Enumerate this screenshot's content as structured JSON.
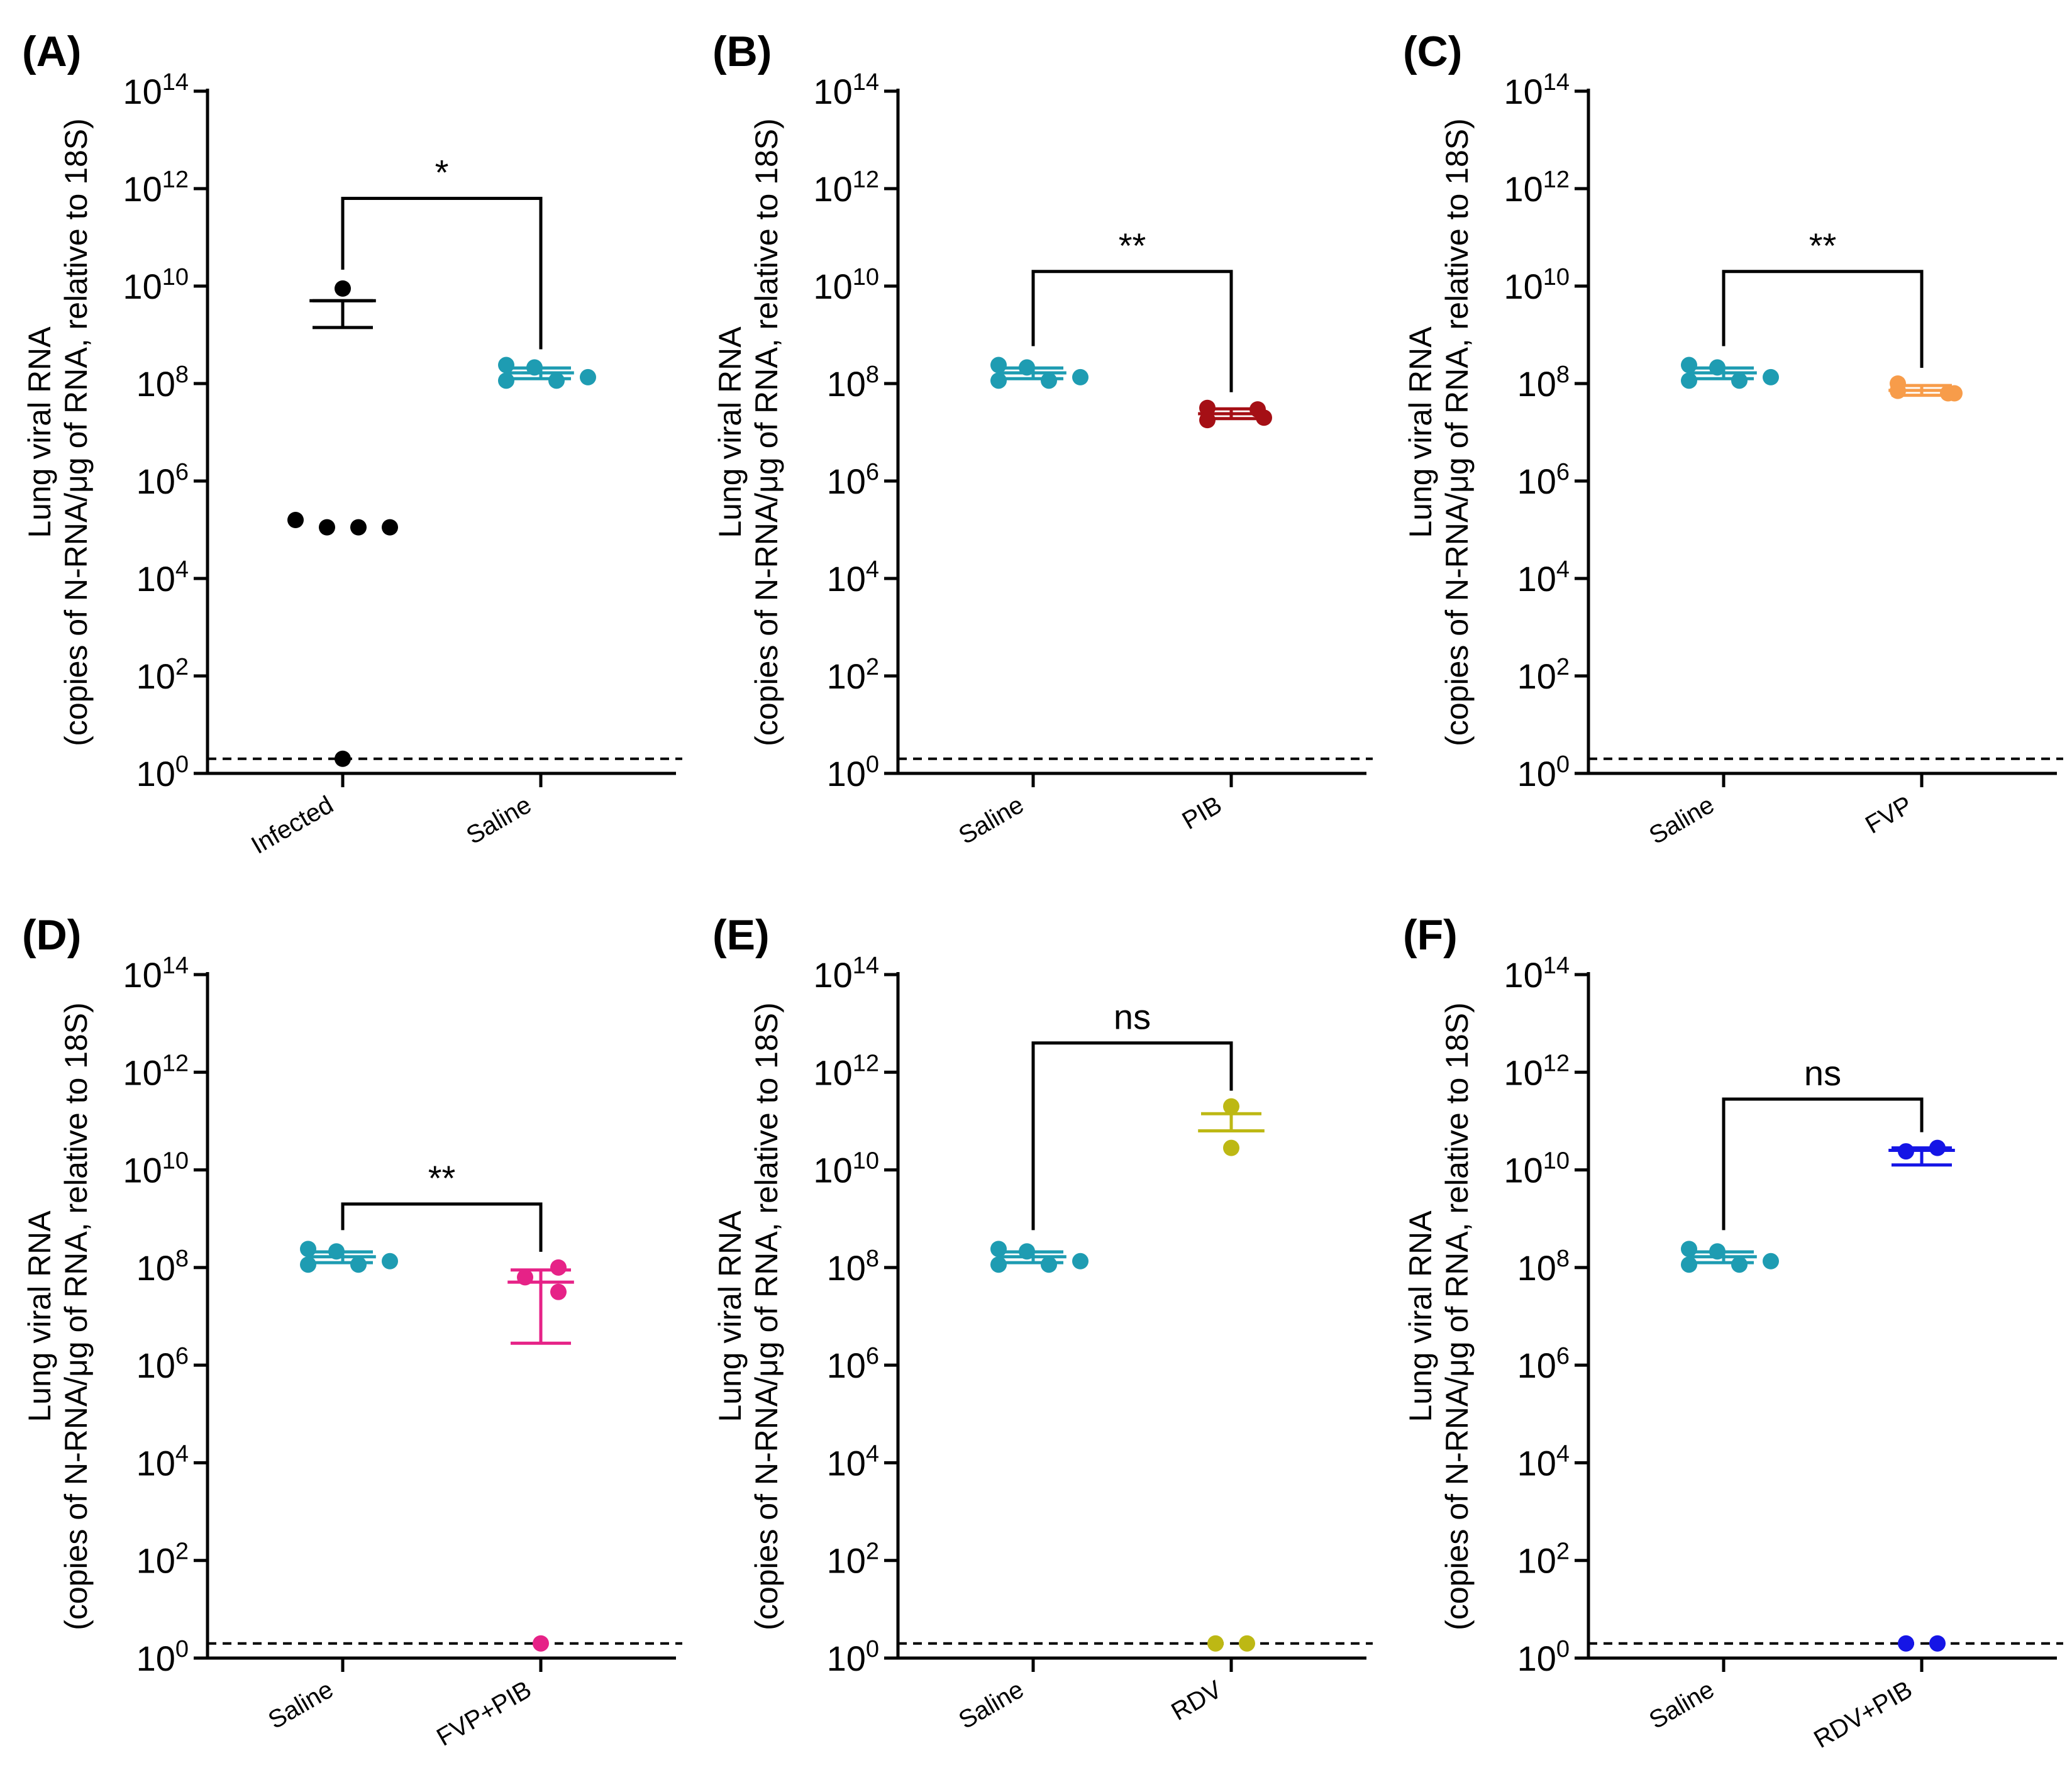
{
  "figure": {
    "ylabel_line1": "Lung viral RNA",
    "ylabel_line2": "(copies of N-RNA/μg of RNA, relative to 18S)",
    "yaxis_scale": "log10",
    "ylim_log10": [
      0,
      14
    ],
    "tick_exponents": [
      "0",
      "2",
      "4",
      "6",
      "8",
      "10",
      "12",
      "14"
    ],
    "tick_base": "10",
    "detection_limit_log10": 0.3
  },
  "chart_data": [
    {
      "type": "scatter",
      "label": "(A)",
      "categories": [
        "Infected",
        "Saline"
      ],
      "series": [
        {
          "name": "Infected",
          "color": "#000000",
          "points_log10": [
            9.95,
            5.2,
            5.05,
            5.05,
            5.05,
            0.3
          ],
          "mean_log10": 9.7,
          "err_low_log10": 9.15,
          "err_high_log10": 9.7
        },
        {
          "name": "Saline",
          "color": "#1E9CB2",
          "points_log10": [
            8.38,
            8.06,
            8.33,
            8.06,
            8.13
          ],
          "mean_log10": 8.22,
          "err_low_log10": 8.1,
          "err_high_log10": 8.32
        }
      ],
      "comparison": {
        "from": 0,
        "to": 1,
        "label": "*",
        "level_log10": 11.8
      }
    },
    {
      "type": "scatter",
      "label": "(B)",
      "categories": [
        "Saline",
        "PIB"
      ],
      "series": [
        {
          "name": "Saline",
          "color": "#1E9CB2",
          "points_log10": [
            8.38,
            8.06,
            8.33,
            8.06,
            8.13
          ],
          "mean_log10": 8.22,
          "err_low_log10": 8.1,
          "err_high_log10": 8.32
        },
        {
          "name": "PIB",
          "color": "#A50F15",
          "points_log10": [
            7.5,
            7.47,
            7.25,
            7.3
          ],
          "mean_log10": 7.38,
          "err_low_log10": 7.28,
          "err_high_log10": 7.48
        }
      ],
      "comparison": {
        "from": 0,
        "to": 1,
        "label": "**",
        "level_log10": 10.3
      }
    },
    {
      "type": "scatter",
      "label": "(C)",
      "categories": [
        "Saline",
        "FVP"
      ],
      "series": [
        {
          "name": "Saline",
          "color": "#1E9CB2",
          "points_log10": [
            8.38,
            8.06,
            8.33,
            8.06,
            8.13
          ],
          "mean_log10": 8.22,
          "err_low_log10": 8.1,
          "err_high_log10": 8.32
        },
        {
          "name": "FVP",
          "color": "#F79C4A",
          "points_log10": [
            8.0,
            7.8,
            7.85,
            7.8
          ],
          "mean_log10": 7.86,
          "err_low_log10": 7.76,
          "err_high_log10": 7.96
        }
      ],
      "comparison": {
        "from": 0,
        "to": 1,
        "label": "**",
        "level_log10": 10.3
      }
    },
    {
      "type": "scatter",
      "label": "(D)",
      "categories": [
        "Saline",
        "FVP+PIB"
      ],
      "series": [
        {
          "name": "Saline",
          "color": "#1E9CB2",
          "points_log10": [
            8.38,
            8.06,
            8.33,
            8.06,
            8.13
          ],
          "mean_log10": 8.22,
          "err_low_log10": 8.1,
          "err_high_log10": 8.32
        },
        {
          "name": "FVP+PIB",
          "color": "#E62287",
          "points_log10": [
            7.8,
            8.0,
            7.5,
            0.3
          ],
          "mean_log10": 7.7,
          "err_low_log10": 6.45,
          "err_high_log10": 7.95
        }
      ],
      "comparison": {
        "from": 0,
        "to": 1,
        "label": "**",
        "level_log10": 9.3
      }
    },
    {
      "type": "scatter",
      "label": "(E)",
      "categories": [
        "Saline",
        "RDV"
      ],
      "series": [
        {
          "name": "Saline",
          "color": "#1E9CB2",
          "points_log10": [
            8.38,
            8.06,
            8.33,
            8.06,
            8.13
          ],
          "mean_log10": 8.22,
          "err_low_log10": 8.1,
          "err_high_log10": 8.32
        },
        {
          "name": "RDV",
          "color": "#BDB814",
          "points_log10": [
            11.3,
            10.45,
            0.3,
            0.3
          ],
          "mean_log10": 10.8,
          "err_low_log10": 10.8,
          "err_high_log10": 11.15
        }
      ],
      "comparison": {
        "from": 0,
        "to": 1,
        "label": "ns",
        "level_log10": 12.6
      }
    },
    {
      "type": "scatter",
      "label": "(F)",
      "categories": [
        "Saline",
        "RDV+PIB"
      ],
      "series": [
        {
          "name": "Saline",
          "color": "#1E9CB2",
          "points_log10": [
            8.38,
            8.06,
            8.33,
            8.06,
            8.13
          ],
          "mean_log10": 8.22,
          "err_low_log10": 8.1,
          "err_high_log10": 8.32
        },
        {
          "name": "RDV+PIB",
          "color": "#1515E6",
          "points_log10": [
            10.38,
            10.45,
            0.3,
            0.3
          ],
          "mean_log10": 10.4,
          "err_low_log10": 10.1,
          "err_high_log10": 10.45
        }
      ],
      "comparison": {
        "from": 0,
        "to": 1,
        "label": "ns",
        "level_log10": 11.45
      }
    }
  ]
}
